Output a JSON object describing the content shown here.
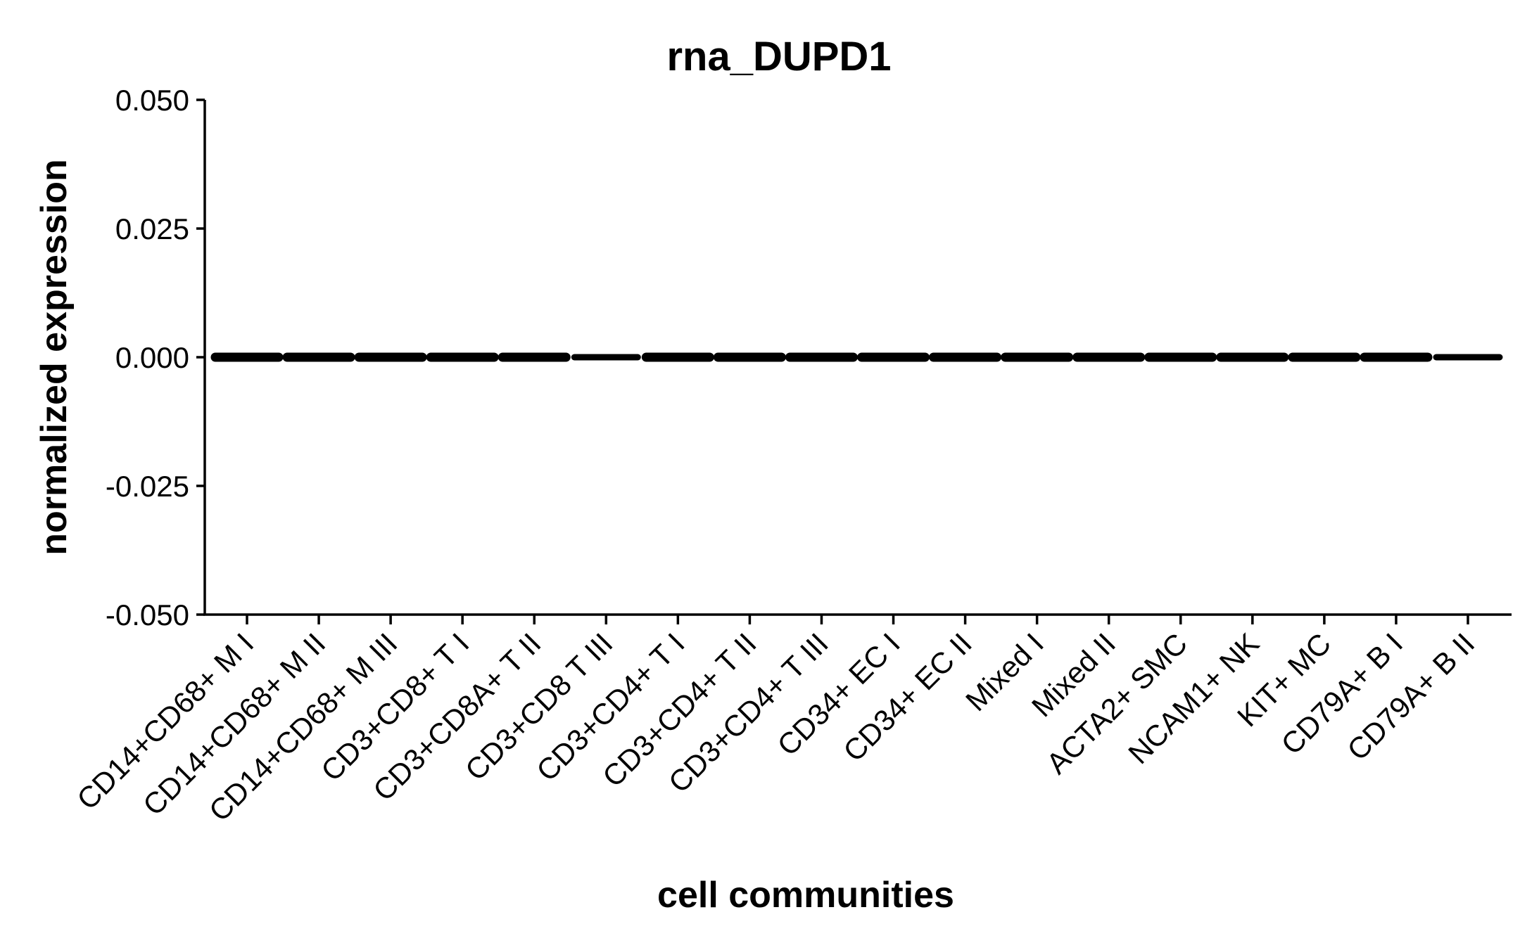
{
  "chart_data": {
    "type": "scatter",
    "title": "rna_DUPD1",
    "xlabel": "cell communities",
    "ylabel": "normalized expression",
    "ylim": [
      -0.05,
      0.05
    ],
    "yticks": [
      "0.050",
      "0.025",
      "0.000",
      "-0.025",
      "-0.050"
    ],
    "ytick_values": [
      0.05,
      0.025,
      0.0,
      -0.025,
      -0.05
    ],
    "grid": false,
    "legend": "none",
    "point_color": "#000000",
    "categories": [
      "CD14+CD68+ M I",
      "CD14+CD68+ M II",
      "CD14+CD68+ M III",
      "CD3+CD8+ T I",
      "CD3+CD8A+ T II",
      "CD3+CD8 T III",
      "CD3+CD4+ T I",
      "CD3+CD4+ T II",
      "CD3+CD4+ T III",
      "CD34+ EC I",
      "CD34+ EC II",
      "Mixed I",
      "Mixed II",
      "ACTA2+ SMC",
      "NCAM1+ NK",
      "KIT+ MC",
      "CD79A+ B I",
      "CD79A+ B II"
    ],
    "values": [
      0,
      0,
      0,
      0,
      0,
      0,
      0,
      0,
      0,
      0,
      0,
      0,
      0,
      0,
      0,
      0,
      0,
      0
    ]
  }
}
